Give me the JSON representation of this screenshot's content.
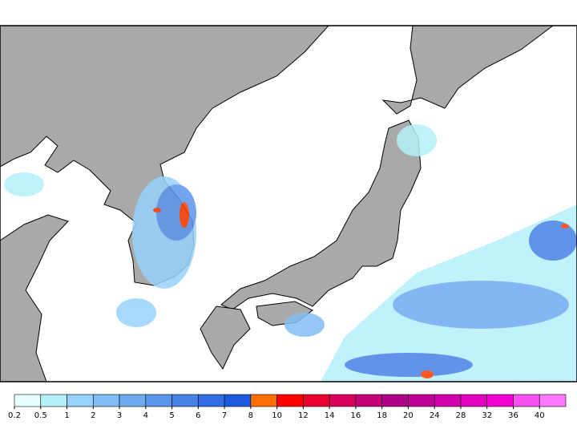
{
  "colorbar": {
    "levels": [
      0.2,
      0.5,
      1,
      2,
      3,
      4,
      5,
      6,
      7,
      8,
      10,
      12,
      14,
      16,
      18,
      20,
      24,
      28,
      32,
      36,
      40
    ],
    "colors": [
      "#e6ffff",
      "#b4f0fa",
      "#96d2fa",
      "#82bef5",
      "#6eaaf0",
      "#5a96eb",
      "#4682e6",
      "#326ee1",
      "#1e5adc",
      "#ff6e00",
      "#ff0000",
      "#eb0032",
      "#d7005a",
      "#c30078",
      "#af0087",
      "#be0096",
      "#d200aa",
      "#e100be",
      "#f000d2",
      "#f550f0",
      "#ff78ff"
    ]
  }
}
